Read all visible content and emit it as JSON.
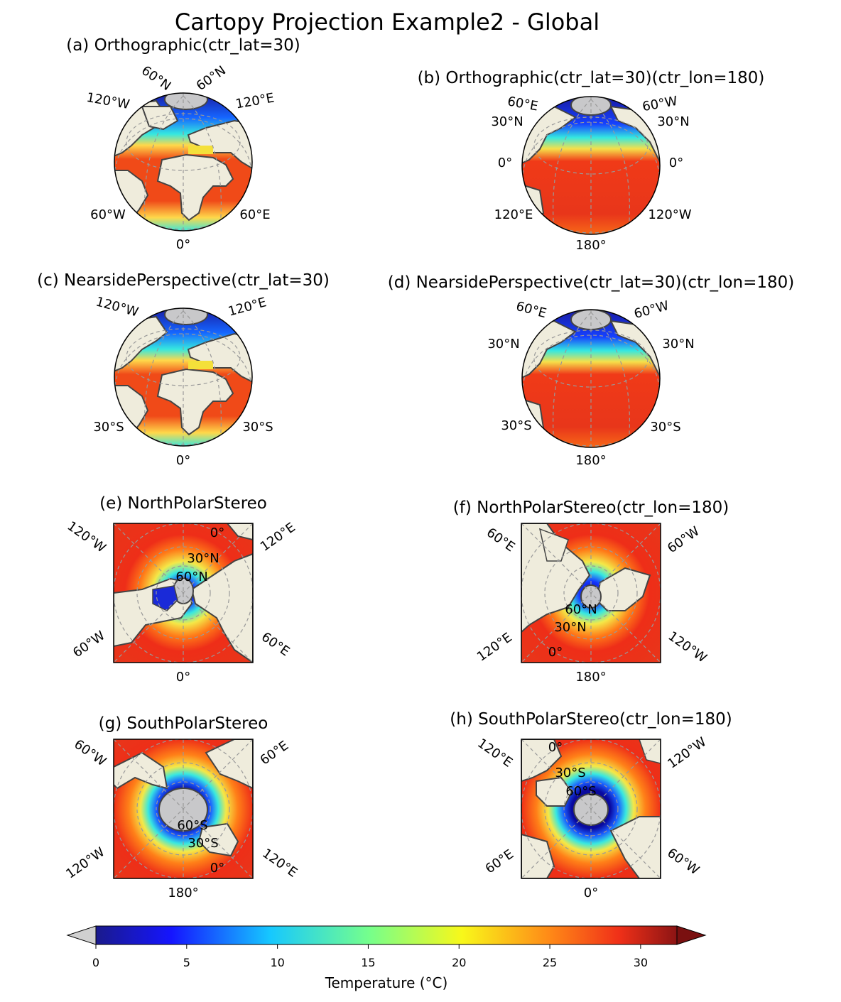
{
  "title": "Cartopy Projection Example2 - Global",
  "panels": [
    {
      "id": "a",
      "title": "(a) Orthographic(ctr_lat=30)",
      "type": "globe",
      "center_lon": 0,
      "labels": [
        "60°N",
        "60°N",
        "120°W",
        "120°E",
        "60°W",
        "60°E",
        "0°"
      ]
    },
    {
      "id": "b",
      "title": "(b) Orthographic(ctr_lat=30)(ctr_lon=180)",
      "type": "globe",
      "center_lon": 180,
      "labels": [
        "60°E",
        "60°W",
        "30°N",
        "30°N",
        "0°",
        "0°",
        "120°E",
        "120°W",
        "180°"
      ]
    },
    {
      "id": "c",
      "title": "(c) NearsidePerspective(ctr_lat=30)",
      "type": "globe",
      "center_lon": 0,
      "labels": [
        "120°W",
        "120°E",
        "30°S",
        "30°S",
        "0°"
      ]
    },
    {
      "id": "d",
      "title": "(d) NearsidePerspective(ctr_lat=30)(ctr_lon=180)",
      "type": "globe",
      "center_lon": 180,
      "labels": [
        "60°E",
        "60°W",
        "30°N",
        "30°N",
        "30°S",
        "30°S",
        "180°"
      ]
    },
    {
      "id": "e",
      "title": "(e) NorthPolarStereo",
      "type": "polar",
      "center_lon": 0,
      "labels": [
        "120°W",
        "120°E",
        "60°W",
        "60°E",
        "0°",
        "0°",
        "30°N",
        "60°N"
      ]
    },
    {
      "id": "f",
      "title": "(f) NorthPolarStereo(ctr_lon=180)",
      "type": "polar",
      "center_lon": 180,
      "labels": [
        "60°E",
        "60°W",
        "120°E",
        "120°W",
        "180°",
        "60°N",
        "30°N",
        "0°"
      ]
    },
    {
      "id": "g",
      "title": "(g) SouthPolarStereo",
      "type": "polar",
      "center_lon": 0,
      "labels": [
        "60°W",
        "60°E",
        "120°W",
        "120°E",
        "180°",
        "60°S",
        "30°S",
        "0°"
      ]
    },
    {
      "id": "h",
      "title": "(h) SouthPolarStereo(ctr_lon=180)",
      "type": "polar",
      "center_lon": 180,
      "labels": [
        "120°E",
        "120°W",
        "60°E",
        "60°W",
        "0°",
        "0°",
        "30°S",
        "60°S"
      ]
    }
  ],
  "colorbar": {
    "label": "Temperature (°C)",
    "ticks": [
      "0",
      "5",
      "10",
      "15",
      "20",
      "25",
      "30"
    ],
    "min": 0,
    "max": 32,
    "extend": "both",
    "colormap": "jet"
  },
  "colors": {
    "land": "#efecdc",
    "polar_ice": "#c8c8ca",
    "coast": "#444444",
    "grid": "#999999"
  }
}
